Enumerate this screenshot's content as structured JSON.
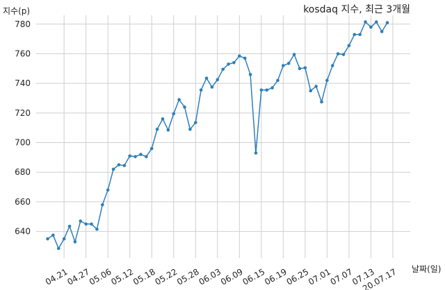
{
  "chart_data": {
    "type": "line",
    "title": "kosdaq 지수, 최근 3개월",
    "xlabel": "날짜(일)",
    "ylabel": "지수(p)",
    "ylim": [
      622,
      786
    ],
    "yticks": [
      640,
      660,
      680,
      700,
      720,
      740,
      760,
      780
    ],
    "grid": true,
    "x_tick_labels": [
      "04.21",
      "04.27",
      "05.06",
      "05.12",
      "05.18",
      "05.22",
      "05.28",
      "06.03",
      "06.09",
      "06.15",
      "06.19",
      "06.25",
      "07.01",
      "07.07",
      "07.13",
      "20.07.17"
    ],
    "x_tick_index": [
      3,
      7,
      11,
      15,
      19,
      23,
      27,
      31,
      35,
      39,
      43,
      47,
      51,
      55,
      59,
      63
    ],
    "series": [
      {
        "color": "#2e7fb8",
        "values": [
          635,
          637.5,
          628.5,
          635,
          643.5,
          633,
          647,
          645,
          645,
          641.5,
          658,
          668,
          682,
          685,
          684.5,
          691,
          690.5,
          692,
          690.5,
          696,
          709,
          716,
          708.5,
          719.5,
          729,
          724,
          709,
          713.5,
          735.5,
          743.5,
          737.5,
          742.5,
          749.5,
          753,
          754,
          758.5,
          757,
          746,
          693,
          735.5,
          735.5,
          737,
          742,
          752,
          753.5,
          759.5,
          750,
          750.5,
          735,
          738,
          727.5,
          742,
          752,
          760,
          759.5,
          765.5,
          773,
          773,
          781.5,
          778,
          781.5,
          775,
          781
        ]
      }
    ]
  }
}
